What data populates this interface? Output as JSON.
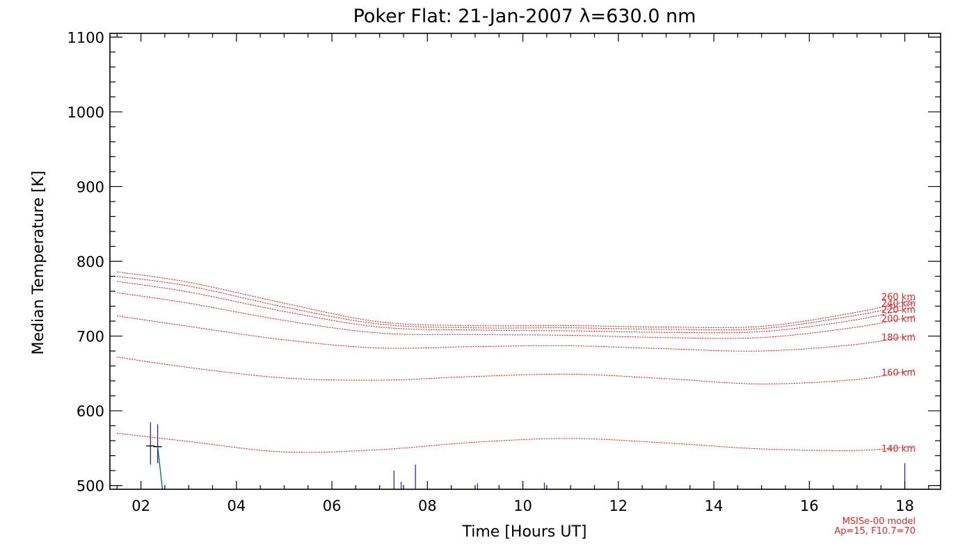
{
  "chart_data": {
    "type": "line",
    "title": "Poker Flat: 21-Jan-2007 λ=630.0 nm",
    "xlabel": "Time [Hours UT]",
    "ylabel": "Median Temperature [K]",
    "xlim": [
      1.35,
      18.75
    ],
    "ylim": [
      495,
      1105
    ],
    "x_ticks": [
      2,
      4,
      6,
      8,
      10,
      12,
      14,
      16,
      18
    ],
    "x_tick_labels": [
      "02",
      "04",
      "06",
      "08",
      "10",
      "12",
      "14",
      "16",
      "18"
    ],
    "y_ticks": [
      500,
      600,
      700,
      800,
      900,
      1000,
      1100
    ],
    "y_tick_labels": [
      "500",
      "600",
      "700",
      "800",
      "900",
      "1000",
      "1100"
    ],
    "model_series": [
      {
        "name": "140 km",
        "x": [
          1.5,
          3,
          5,
          7,
          9,
          11,
          13,
          15,
          17,
          18.2
        ],
        "y": [
          570,
          559,
          545,
          548,
          558,
          563,
          557,
          549,
          547,
          553
        ]
      },
      {
        "name": "160 km",
        "x": [
          1.5,
          3,
          5,
          7,
          9,
          11,
          13,
          15,
          17,
          18.2
        ],
        "y": [
          672,
          658,
          644,
          641,
          646,
          649,
          643,
          636,
          642,
          655
        ]
      },
      {
        "name": "180 km",
        "x": [
          1.5,
          3,
          5,
          7,
          9,
          11,
          13,
          15,
          17,
          18.2
        ],
        "y": [
          727,
          713,
          695,
          684,
          686,
          687,
          683,
          680,
          689,
          702
        ]
      },
      {
        "name": "200 km",
        "x": [
          1.5,
          3,
          5,
          7,
          9,
          11,
          13,
          15,
          17,
          18.2
        ],
        "y": [
          758,
          744,
          721,
          704,
          702,
          701,
          698,
          698,
          712,
          727
        ]
      },
      {
        "name": "220 km",
        "x": [
          1.5,
          3,
          5,
          7,
          9,
          11,
          13,
          15,
          17,
          18.2
        ],
        "y": [
          773,
          759,
          733,
          712,
          708,
          707,
          705,
          706,
          722,
          739
        ]
      },
      {
        "name": "240 km",
        "x": [
          1.5,
          3,
          5,
          7,
          9,
          11,
          13,
          15,
          17,
          18.2
        ],
        "y": [
          780,
          767,
          739,
          716,
          711,
          711,
          709,
          710,
          728,
          744
        ]
      },
      {
        "name": "260 km",
        "x": [
          1.5,
          3,
          5,
          7,
          9,
          11,
          13,
          15,
          17,
          18.2
        ],
        "y": [
          786,
          772,
          744,
          719,
          714,
          714,
          712,
          713,
          732,
          749
        ]
      }
    ],
    "measurements": [
      {
        "x": 2.2,
        "y": 553,
        "err_low": 528,
        "err_high": 585
      },
      {
        "x": 2.35,
        "y": 552,
        "err_low": 530,
        "err_high": 582
      }
    ],
    "measurement_decline": {
      "x": [
        2.35,
        2.45
      ],
      "y": [
        552,
        495
      ]
    },
    "blue_spikes": [
      {
        "x": 7.3,
        "top": 520
      },
      {
        "x": 7.45,
        "top": 505
      },
      {
        "x": 7.75,
        "top": 528
      },
      {
        "x": 9.05,
        "top": 503
      },
      {
        "x": 10.45,
        "top": 504
      },
      {
        "x": 18.0,
        "top": 530
      }
    ],
    "model_note_line1": "MSISe-00 model",
    "model_note_line2": "Ap=15, F10.7=70",
    "colors": {
      "model": "#e8262a",
      "data": "#1515d8",
      "axes": "#000000"
    }
  }
}
